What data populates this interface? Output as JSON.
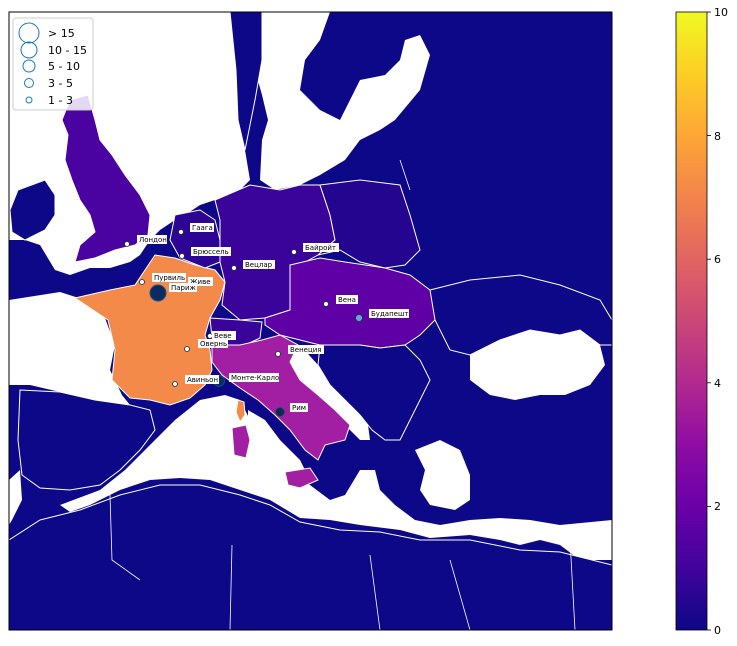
{
  "legend": {
    "items": [
      {
        "label": "> 15"
      },
      {
        "label": "10 - 15"
      },
      {
        "label": "5 - 10"
      },
      {
        "label": "3 - 5"
      },
      {
        "label": "1 - 3"
      }
    ]
  },
  "colorbar": {
    "min": 0,
    "max": 10,
    "ticks": [
      "0",
      "2",
      "4",
      "6",
      "8",
      "10"
    ]
  },
  "cities": [
    {
      "name": "Лондон"
    },
    {
      "name": "Гаага"
    },
    {
      "name": "Брюссель"
    },
    {
      "name": "Байройт"
    },
    {
      "name": "Вецлар"
    },
    {
      "name": "Пурвиль"
    },
    {
      "name": "Живе"
    },
    {
      "name": "Париж"
    },
    {
      "name": "Вена"
    },
    {
      "name": "Будапешт"
    },
    {
      "name": "Веве"
    },
    {
      "name": "Овернь"
    },
    {
      "name": "Венеция"
    },
    {
      "name": "Авиньон"
    },
    {
      "name": "Монте-Карло"
    },
    {
      "name": "Рим"
    }
  ],
  "colors": {
    "background_country": "#0d0887",
    "sea": "#ffffff",
    "border": "#ffffff",
    "france": "#f48a4a",
    "italy": "#a21fa3",
    "marker_outline": "#1f4e8c"
  }
}
